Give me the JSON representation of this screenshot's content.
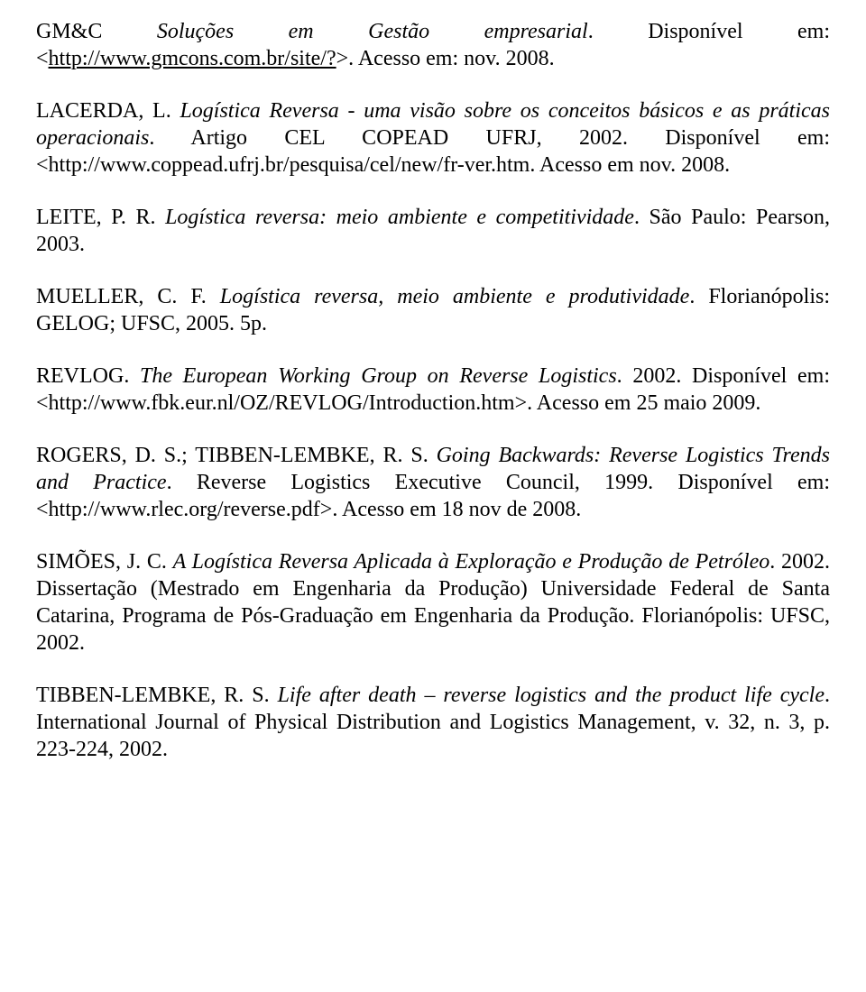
{
  "refs": {
    "gmc": {
      "pre": "GM&C ",
      "title": "Soluções em Gestão empresarial",
      "post1": ". Disponível em:<",
      "url": "http://www.gmcons.com.br/site/?",
      "post2": ">. Acesso em: nov. 2008."
    },
    "lacerda": {
      "author": "LACERDA, L. ",
      "title": "Logística Reversa - uma visão sobre os conceitos básicos e as práticas operacionais",
      "post": ". Artigo CEL COPEAD UFRJ, 2002. Disponível em:<http://www.coppead.ufrj.br/pesquisa/cel/new/fr-ver.htm. Acesso em nov. 2008."
    },
    "leite": {
      "author": "LEITE, P. R. ",
      "title": "Logística reversa: meio ambiente e competitividade",
      "post": ". São Paulo: Pearson, 2003."
    },
    "mueller": {
      "author": "MUELLER, C. F. ",
      "title": "Logística reversa, meio ambiente e produtividade",
      "post": ". Florianópolis: GELOG; UFSC, 2005. 5p."
    },
    "revlog": {
      "author": "REVLOG. ",
      "title": "The European Working Group on Reverse Logistics",
      "post": ". 2002. Disponível em: <http://www.fbk.eur.nl/OZ/REVLOG/Introduction.htm>. Acesso em 25 maio 2009."
    },
    "rogers": {
      "author": "ROGERS, D. S.; TIBBEN-LEMBKE, R. S. ",
      "title": "Going Backwards: Reverse Logistics Trends and Practice",
      "post": ". Reverse Logistics Executive Council, 1999. Disponível em: <http://www.rlec.org/reverse.pdf>. Acesso em 18 nov de 2008."
    },
    "simoes": {
      "author": "SIMÕES, J. C. ",
      "title": "A Logística Reversa Aplicada à Exploração e Produção de Petróleo",
      "post": ". 2002. Dissertação (Mestrado em Engenharia da Produção) Universidade Federal de Santa Catarina, Programa de Pós-Graduação em Engenharia da Produção. Florianópolis: UFSC, 2002."
    },
    "tibben": {
      "author": "TIBBEN-LEMBKE, R. S. ",
      "title": "Life after death – reverse logistics and the product life cycle",
      "post": ". International Journal of Physical Distribution and Logistics Management, v. 32, n. 3, p. 223-224, 2002."
    }
  }
}
